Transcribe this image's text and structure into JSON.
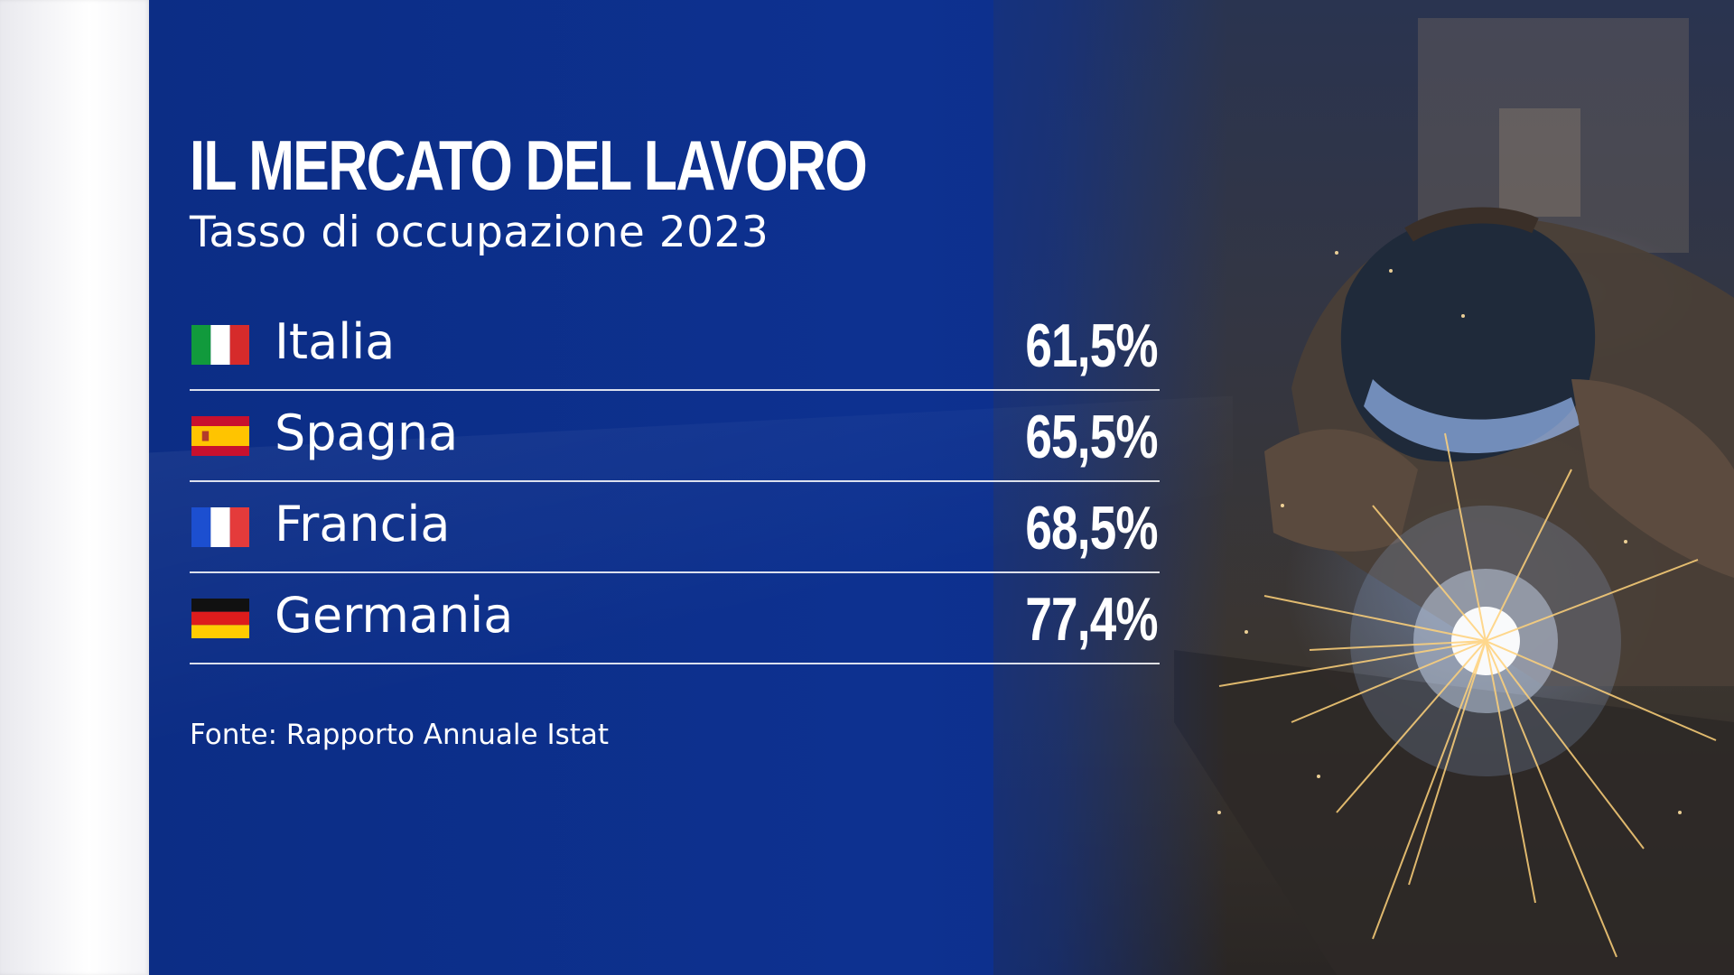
{
  "graphic": {
    "title": "IL MERCATO DEL LAVORO",
    "subtitle": "Tasso di occupazione 2023",
    "source": "Fonte: Rapporto Annuale Istat"
  },
  "rows": [
    {
      "country": "Italia",
      "value": "61,5%",
      "flag": "italy-flag-icon"
    },
    {
      "country": "Spagna",
      "value": "65,5%",
      "flag": "spain-flag-icon"
    },
    {
      "country": "Francia",
      "value": "68,5%",
      "flag": "france-flag-icon"
    },
    {
      "country": "Germania",
      "value": "77,4%",
      "flag": "germany-flag-icon"
    }
  ],
  "colors": {
    "panel_blue": "#0d3190",
    "text": "#ffffff",
    "divider": "#ffffff"
  },
  "background_photo": "welder-with-sparks"
}
